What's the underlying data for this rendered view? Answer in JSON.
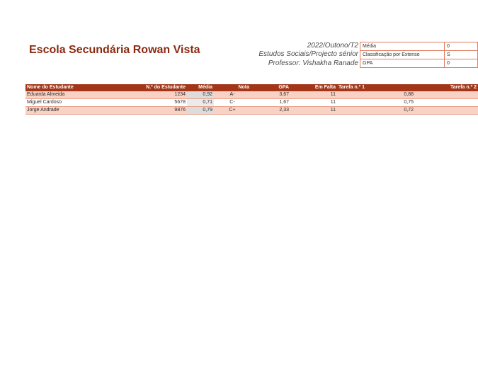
{
  "header": {
    "school": "Escola Secundária Rowan Vista",
    "term": "2022/Outono/T2",
    "course": "Estudos Sociais/Projecto sénior",
    "teacher": "Professor: Vishakha Ranade"
  },
  "summary": [
    {
      "label": "Média",
      "value": "0"
    },
    {
      "label": "Classificação por Extenso",
      "value": "S"
    },
    {
      "label": "GPA",
      "value": "0"
    }
  ],
  "table": {
    "columns": [
      "Nome do Estudante",
      "N.º do Estudante",
      "Média",
      "Nota",
      "GPA",
      "Em Falta",
      "Tarefa n.º 1",
      "Tarefa n.º 2"
    ],
    "rows": [
      {
        "name": "Eduarda Almeida",
        "id": "1234",
        "media": "0,92",
        "nota": "A-",
        "gpa": "3,67",
        "falta": "11",
        "t1": "0,88",
        "t2": ""
      },
      {
        "name": "Miguel Cardoso",
        "id": "5678",
        "media": "0,71",
        "nota": "C-",
        "gpa": "1,67",
        "falta": "11",
        "t1": "0,75",
        "t2": ""
      },
      {
        "name": "Jorge Andrade",
        "id": "9876",
        "media": "0,79",
        "nota": "C+",
        "gpa": "2,33",
        "falta": "11",
        "t1": "0,72",
        "t2": ""
      }
    ]
  }
}
